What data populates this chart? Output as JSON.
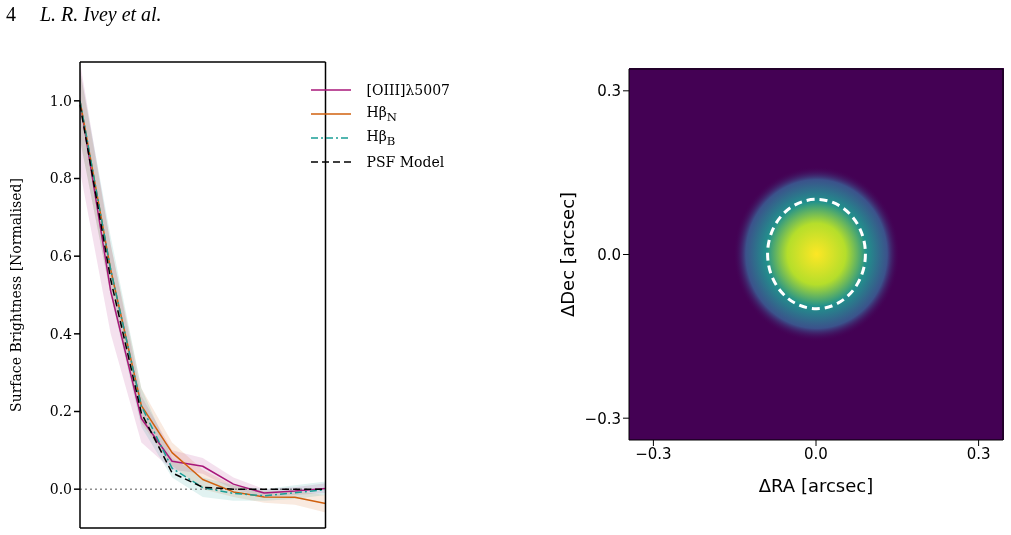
{
  "chart_data": [
    {
      "type": "line",
      "annotations": [
        "4",
        "L. R. Ivey et al."
      ],
      "ylabel": "Surface Brightness [Normalised]",
      "categories": [
        null,
        null,
        null,
        null,
        null,
        null,
        null,
        null,
        null
      ],
      "series": [
        {
          "name": "[OIII]λ5007",
          "color": "#a8177a",
          "line_style": "solid",
          "values": [
            1.0,
            0.51,
            0.182,
            0.072,
            0.059,
            0.013,
            -0.01,
            -0.005,
            0.002
          ],
          "lower": [
            0.82,
            0.4,
            0.12,
            0.05,
            0.04,
            0.0,
            -0.02,
            -0.015,
            -0.01
          ],
          "upper": [
            1.1,
            0.63,
            0.24,
            0.1,
            0.08,
            0.03,
            0.0,
            0.005,
            0.015
          ]
        },
        {
          "name": "Hβ$_{N}$",
          "color": "#d0600e",
          "line_style": "solid",
          "values": [
            1.0,
            0.565,
            0.215,
            0.094,
            0.025,
            -0.007,
            -0.02,
            -0.021,
            -0.037
          ],
          "lower": [
            0.9,
            0.5,
            0.17,
            0.06,
            0.0,
            -0.02,
            -0.035,
            -0.04,
            -0.06
          ],
          "upper": [
            1.08,
            0.63,
            0.26,
            0.12,
            0.05,
            0.01,
            -0.005,
            -0.005,
            -0.015
          ]
        },
        {
          "name": "Hβ$_{B}$",
          "color": "#1a9e96",
          "line_style": "dashdot",
          "values": [
            1.0,
            0.565,
            0.214,
            0.054,
            0.004,
            -0.011,
            -0.017,
            -0.009,
            -0.001
          ],
          "lower": [
            0.9,
            0.5,
            0.16,
            0.03,
            -0.02,
            -0.03,
            -0.03,
            -0.025,
            -0.015
          ],
          "upper": [
            1.08,
            0.65,
            0.26,
            0.08,
            0.03,
            0.01,
            0.0,
            0.01,
            0.02
          ]
        },
        {
          "name": "PSF Model",
          "color": "#000000",
          "line_style": "dashed",
          "values": [
            0.99,
            0.54,
            0.196,
            0.042,
            0.005,
            0.0,
            0.0,
            0.0,
            0.0
          ]
        }
      ],
      "ylim": [
        -0.1,
        1.1
      ],
      "yticks": [
        {
          "value": 0,
          "label": "0.0"
        },
        {
          "value": 0.2,
          "label": "0.2"
        },
        {
          "value": 0.4,
          "label": "0.4"
        },
        {
          "value": 0.6,
          "label": "0.6"
        },
        {
          "value": 0.8,
          "label": "0.8"
        },
        {
          "value": 1,
          "label": "1.0"
        }
      ],
      "ref_lines": [
        {
          "axis": "y",
          "value": 0,
          "color": "#555555",
          "line_style": "dotted"
        }
      ],
      "legend": "top right",
      "tick_labels": "y"
    },
    {
      "type": "scatter",
      "xlabel": "ΔRA [arcsec]",
      "ylabel": "ΔDec [arcsec]",
      "xlim": [
        -0.345,
        0.345
      ],
      "ylim": [
        -0.34,
        0.34
      ],
      "xticks": [
        {
          "value": -0.3,
          "label": "−0.3"
        },
        {
          "value": 0,
          "label": "0.0"
        },
        {
          "value": 0.3,
          "label": "0.3"
        }
      ],
      "yticks": [
        {
          "value": -0.3,
          "label": "−0.3"
        },
        {
          "value": 0,
          "label": "0.0"
        },
        {
          "value": 0.3,
          "label": "0.3"
        }
      ]
    }
  ]
}
